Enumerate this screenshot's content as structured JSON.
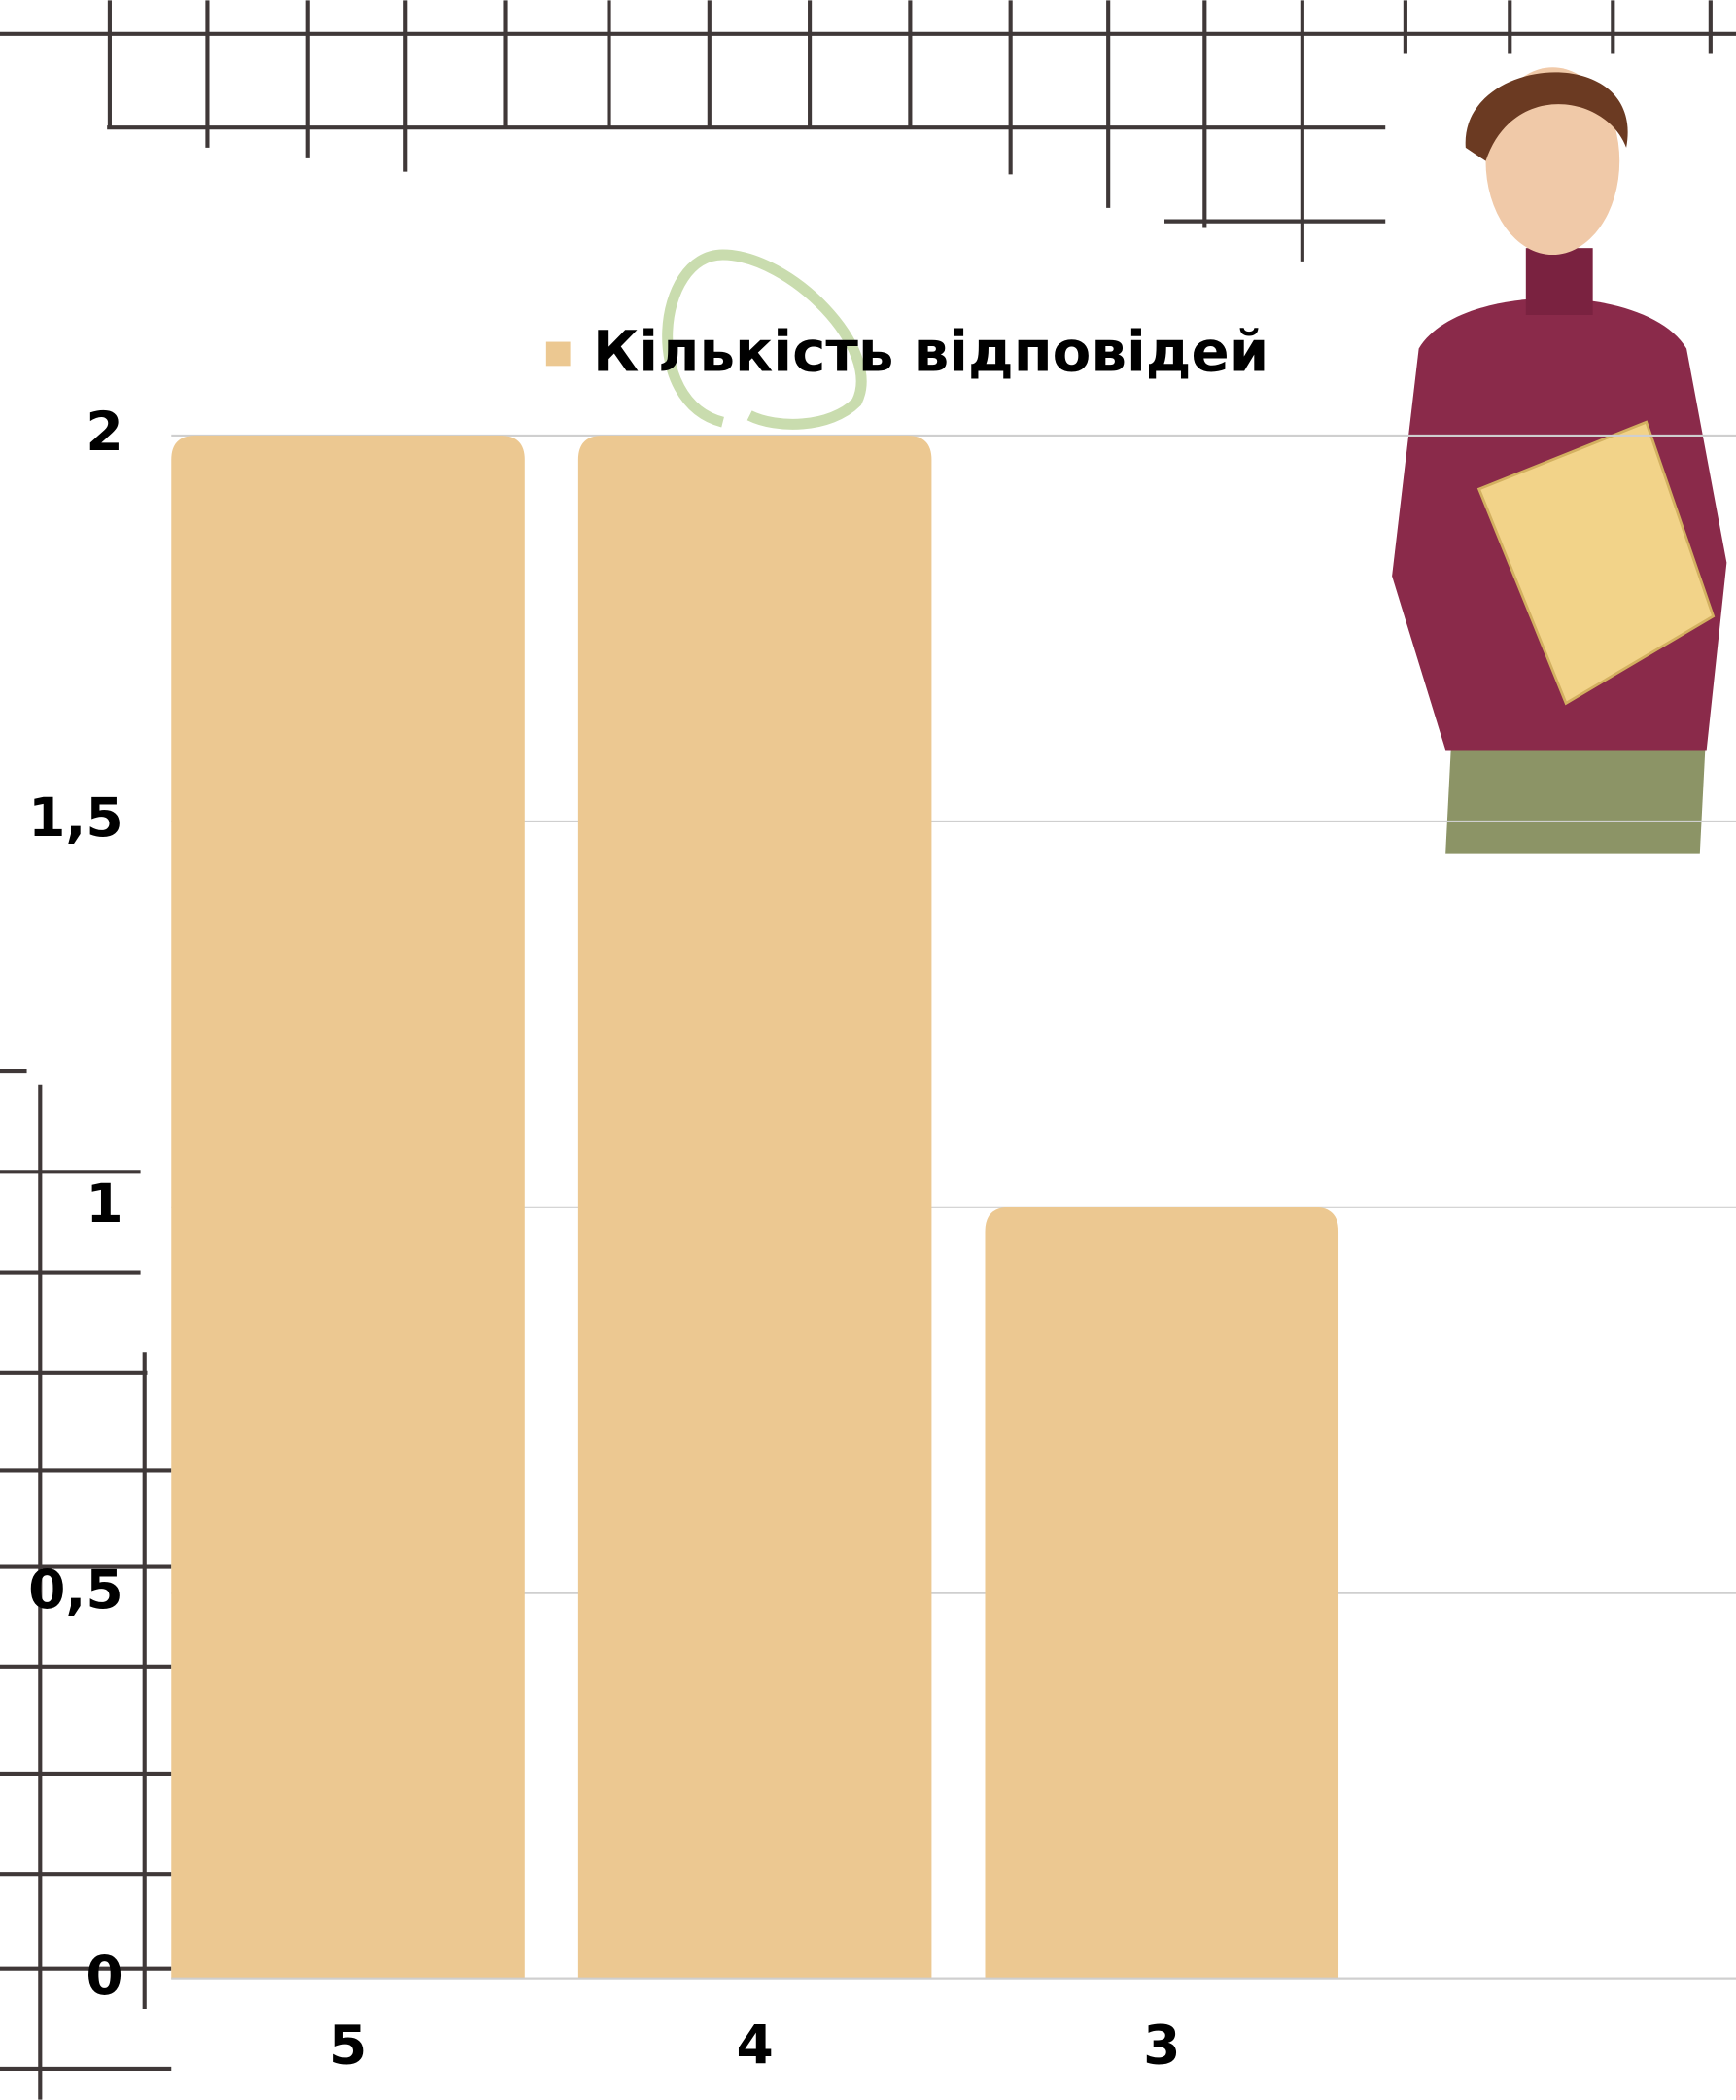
{
  "chart_data": {
    "type": "bar",
    "categories": [
      "5",
      "4",
      "3"
    ],
    "series": [
      {
        "name": "Кількість відповідей",
        "color": "#ecc891",
        "values": [
          2,
          2,
          1
        ]
      }
    ],
    "ylim": [
      0,
      2
    ],
    "yticks": [
      0,
      {
        "value": 0.5,
        "label": "0,5"
      },
      1,
      {
        "value": 1.5,
        "label": "1,5"
      },
      2
    ],
    "grid": true,
    "legend": "top"
  }
}
